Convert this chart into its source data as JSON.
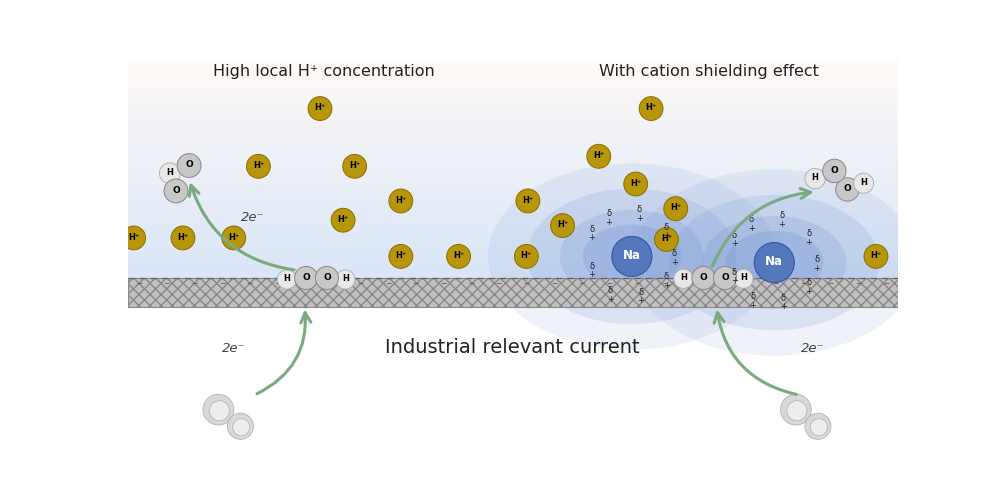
{
  "title_left": "High local H⁺ concentration",
  "title_right": "With cation shielding effect",
  "bottom_label": "Industrial relevant current",
  "arrow_color": "#7aaa80",
  "yellow_color": "#b8960a",
  "yellow_edge": "#8a6e00",
  "O_face": "#c8c8c8",
  "O_edge": "#888888",
  "H_face": "#e8e8e8",
  "H_edge": "#aaaaaa",
  "Na_face": "#5577bb",
  "Na_edge": "#3355aa",
  "Na_glow": "#7799cc",
  "text_color": "#222222",
  "electrode_face": "#c0c0c0",
  "electrode_edge": "#888888",
  "dashed_color": "#555555",
  "neg_color": "#555555"
}
